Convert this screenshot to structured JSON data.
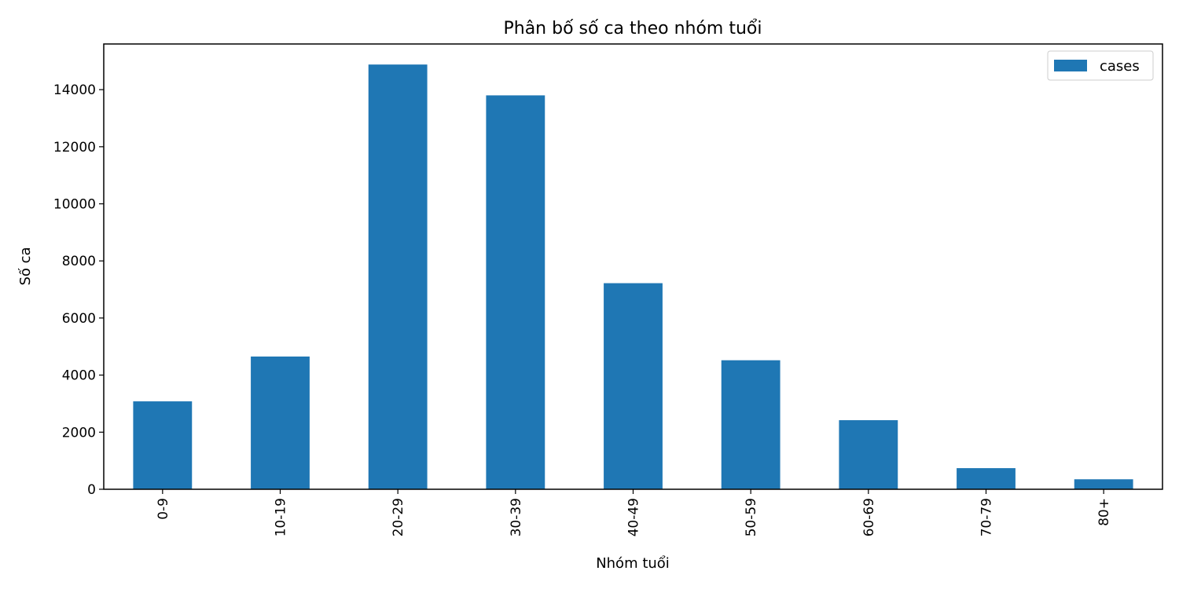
{
  "chart_data": {
    "type": "bar",
    "title": "Phân bố số ca theo nhóm tuổi",
    "xlabel": "Nhóm tuổi",
    "ylabel": "Số ca",
    "categories": [
      "0-9",
      "10-19",
      "20-29",
      "30-39",
      "40-49",
      "50-59",
      "60-69",
      "70-79",
      "80+"
    ],
    "series": [
      {
        "name": "cases",
        "color": "#1f77b4",
        "values": [
          3080,
          4650,
          14880,
          13800,
          7220,
          4520,
          2420,
          740,
          350
        ]
      }
    ],
    "ylim": [
      0,
      15600
    ],
    "yticks": [
      0,
      2000,
      4000,
      6000,
      8000,
      10000,
      12000,
      14000
    ],
    "ytick_labels": [
      "0",
      "2000",
      "4000",
      "6000",
      "8000",
      "10000",
      "12000",
      "14000"
    ],
    "legend": {
      "position": "top-right"
    },
    "grid": false
  }
}
